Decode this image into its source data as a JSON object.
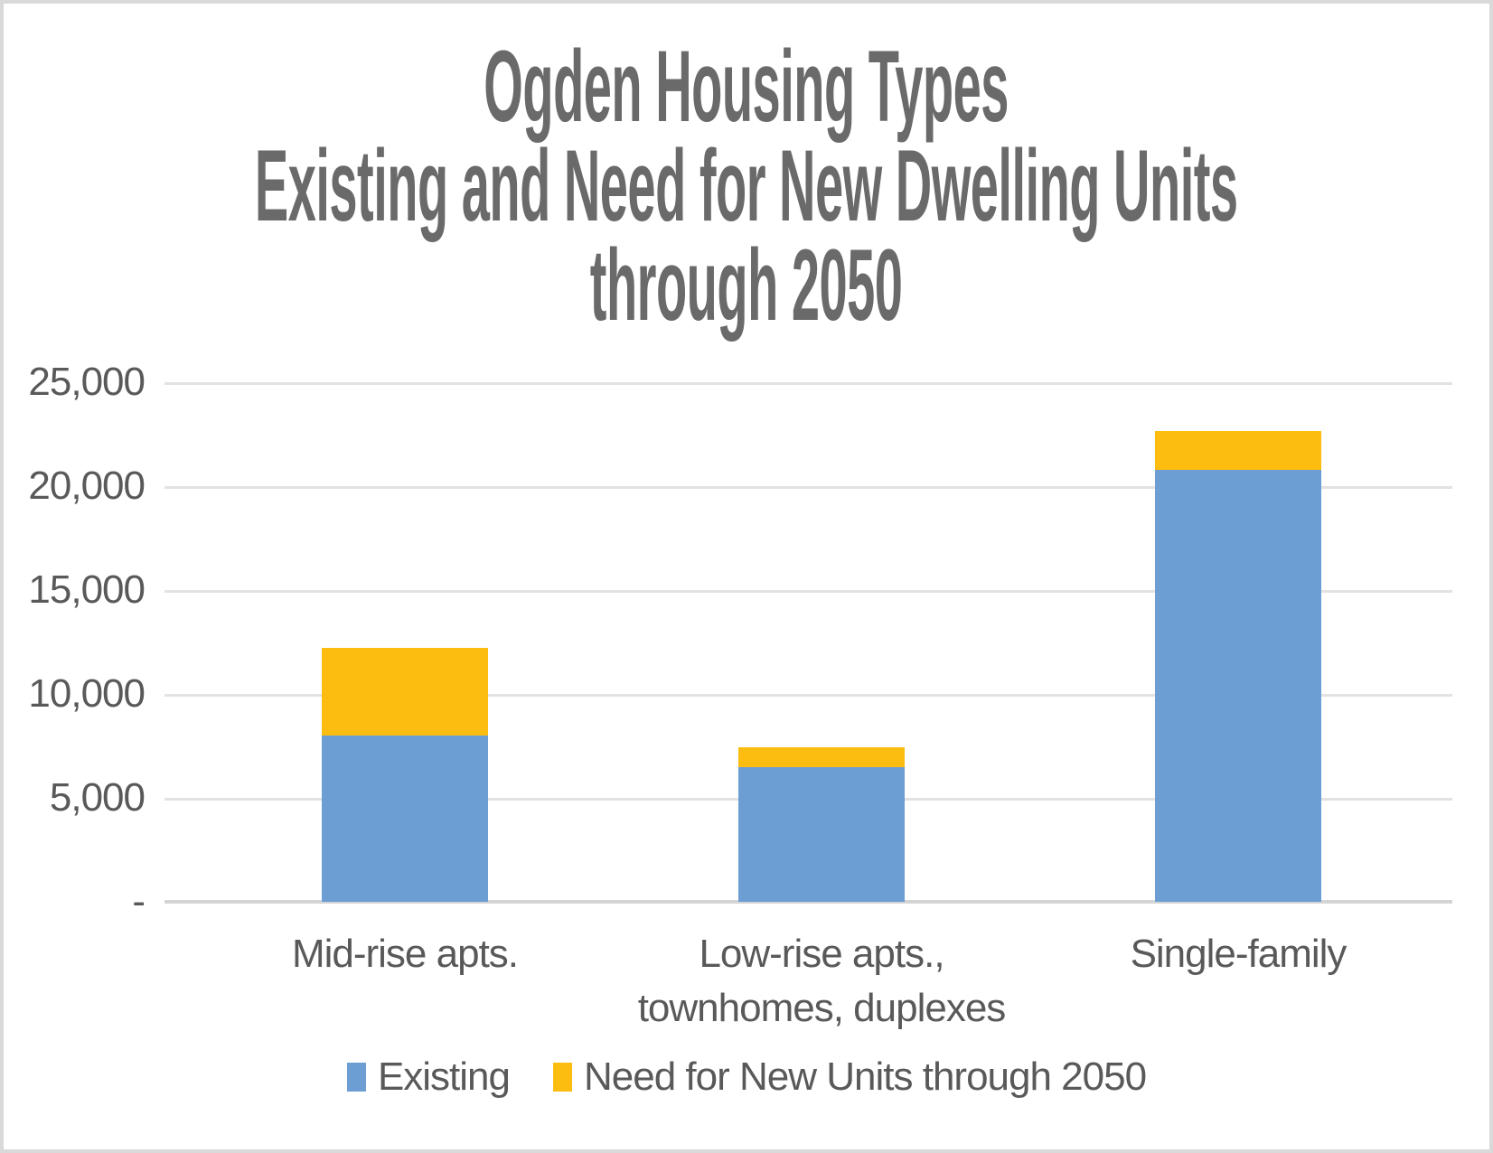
{
  "chart_data": {
    "type": "bar",
    "stacked": true,
    "title_lines": [
      "Ogden Housing Types",
      "Existing and Need for New Dwelling Units",
      "through 2050"
    ],
    "title": "Ogden Housing Types Existing and Need for New Dwelling Units through 2050",
    "categories": [
      "Mid-rise apts.",
      "Low-rise apts., townhomes, duplexes",
      "Single-family"
    ],
    "categories_display": [
      [
        "Mid-rise apts."
      ],
      [
        "Low-rise apts.,",
        "townhomes, duplexes"
      ],
      [
        "Single-family"
      ]
    ],
    "series": [
      {
        "name": "Existing",
        "color": "#6d9ed3",
        "values": [
          8000,
          6500,
          20800
        ]
      },
      {
        "name": "Need for New Units through 2050",
        "color": "#fcbc10",
        "values": [
          4200,
          950,
          1850
        ]
      }
    ],
    "stack_totals": [
      12200,
      7450,
      22650
    ],
    "xlabel": "",
    "ylabel": "",
    "y_axis": {
      "min": 0,
      "max": 25000,
      "tick_interval": 5000,
      "tick_labels": [
        "25,000",
        "20,000",
        "15,000",
        "10,000",
        "5,000",
        "-"
      ]
    },
    "ylim": [
      0,
      25000
    ],
    "grid": true,
    "legend_position": "bottom",
    "colors": {
      "existing_blue": "#6d9ed3",
      "need_yellow": "#fcbc10",
      "title_gray": "#6a6a6a",
      "label_gray": "#595959",
      "gridline_gray": "#e2e2e2",
      "frame_border_gray": "#d9d9d9"
    }
  }
}
